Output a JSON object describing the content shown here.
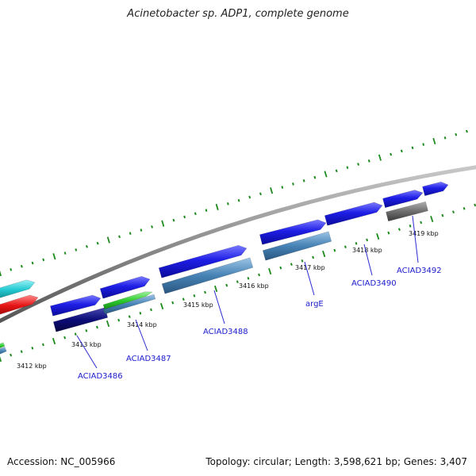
{
  "title": "Acinetobacter sp. ADP1, complete genome",
  "accession_text": "Accession: NC_005966",
  "summary_text": "Topology: circular; Length: 3,598,621 bp; Genes: 3,407",
  "colors": {
    "backbone": "#8c8c8c",
    "ticks": "#1f8a1f",
    "cds_blue": "#1e1ee6",
    "cds_steel": "#4682b4",
    "cds_navy": "#0c0c78",
    "cds_green": "#2ecc2e",
    "cds_gray": "#6e6e6e",
    "cds_cyan": "#22c8d0",
    "cds_red": "#e61414"
  },
  "ticks": [
    {
      "label": "3412 kbp"
    },
    {
      "label": "3413 kbp"
    },
    {
      "label": "3414 kbp"
    },
    {
      "label": "3415 kbp"
    },
    {
      "label": "3416 kbp"
    },
    {
      "label": "3417 kbp"
    },
    {
      "label": "3418 kbp"
    },
    {
      "label": "3419 kbp"
    }
  ],
  "gene_labels": [
    {
      "name": "ACIAD3486"
    },
    {
      "name": "ACIAD3487"
    },
    {
      "name": "ACIAD3488"
    },
    {
      "name": "argE"
    },
    {
      "name": "ACIAD3490"
    },
    {
      "name": "ACIAD3492"
    }
  ]
}
